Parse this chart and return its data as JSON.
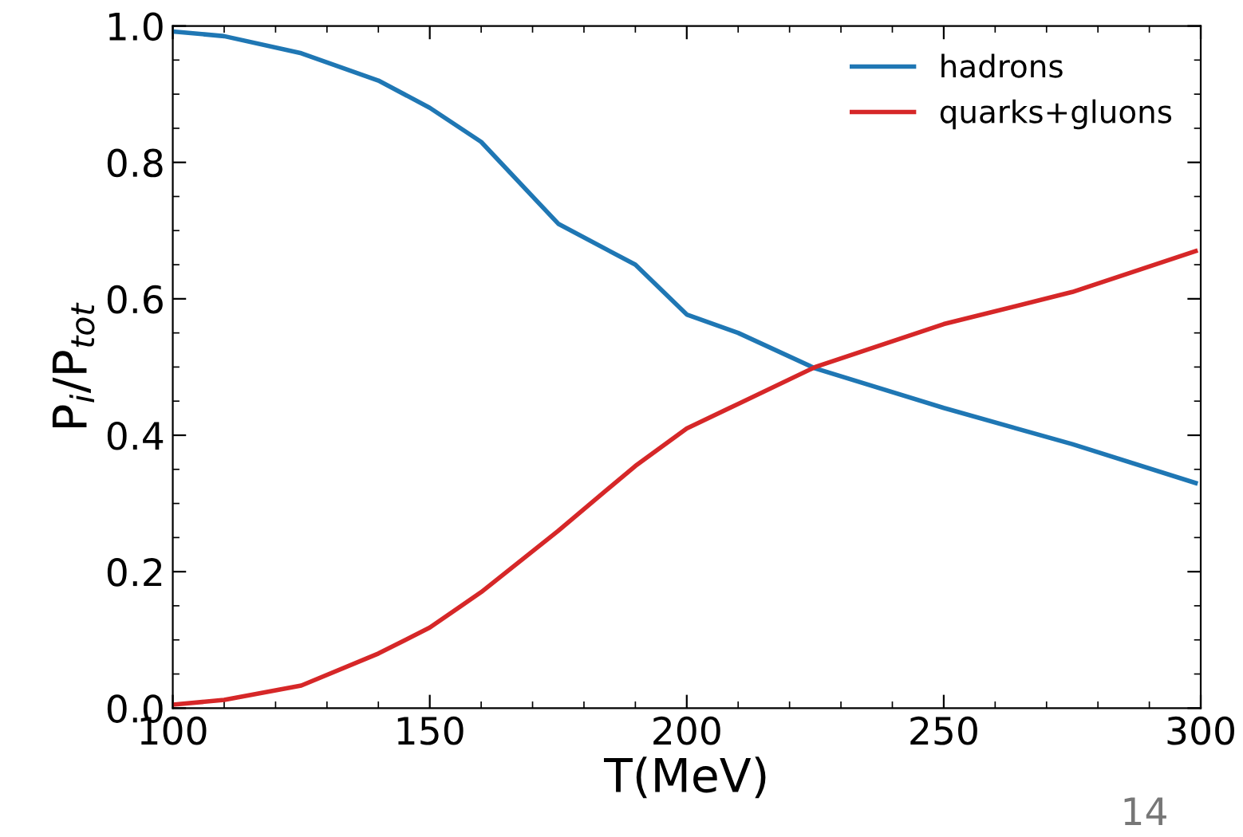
{
  "chart_data": {
    "type": "line",
    "xlabel": "T(MeV)",
    "ylabel": "P$_{i}$/P$_{tot}$",
    "x": [
      100,
      110,
      125,
      140,
      150,
      160,
      175,
      190,
      200,
      210,
      225,
      250,
      275,
      299
    ],
    "series": [
      {
        "name": "hadrons",
        "color": "#1f77b4",
        "values": [
          0.992,
          0.985,
          0.96,
          0.92,
          0.88,
          0.83,
          0.71,
          0.65,
          0.577,
          0.55,
          0.498,
          0.44,
          0.387,
          0.33
        ]
      },
      {
        "name": "quarks+gluons",
        "color": "#d62728",
        "values": [
          0.005,
          0.012,
          0.033,
          0.08,
          0.118,
          0.17,
          0.26,
          0.355,
          0.41,
          0.446,
          0.5,
          0.563,
          0.61,
          0.67
        ]
      }
    ],
    "xlim": [
      100,
      300
    ],
    "xticks": [
      100,
      150,
      200,
      250,
      300
    ],
    "ylim": [
      0,
      1
    ],
    "yticks": [
      {
        "value": 0,
        "label": "0.0"
      },
      0.2,
      0.4,
      0.6,
      0.8,
      {
        "value": 1,
        "label": "1.0"
      }
    ],
    "grid": false,
    "legend": "top right",
    "marker": "none",
    "line_style": "solid",
    "annotations": [
      "14"
    ]
  }
}
